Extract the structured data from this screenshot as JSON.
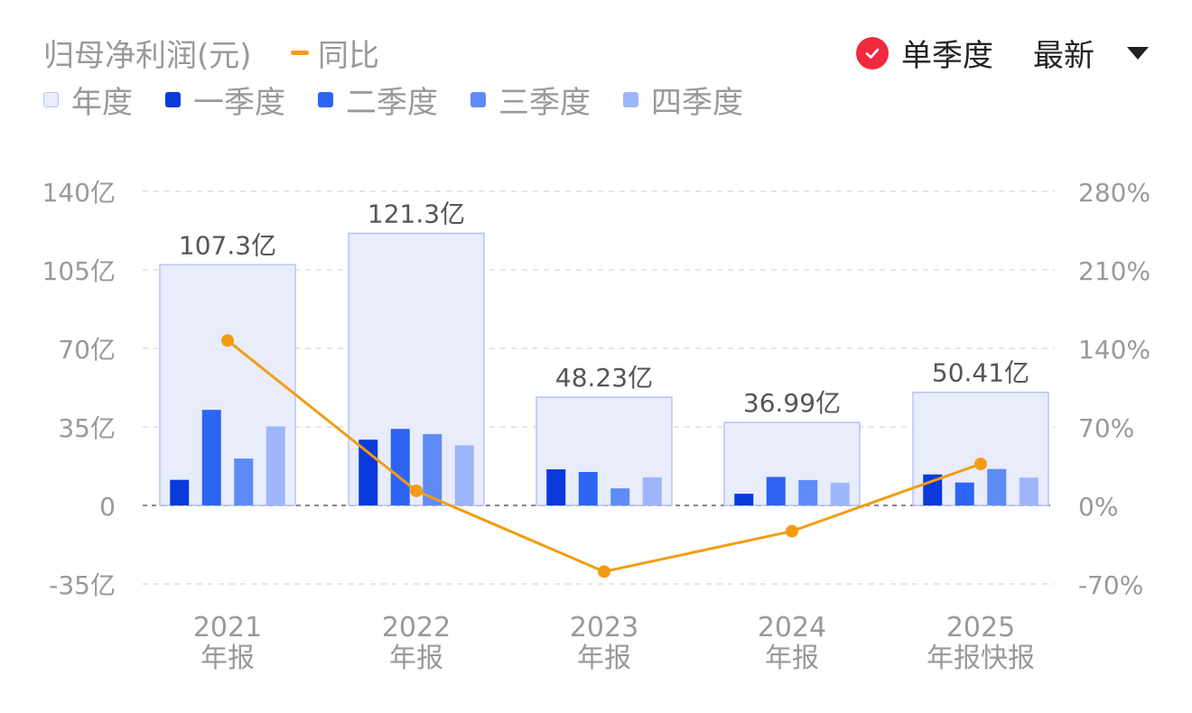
{
  "header": {
    "title": "归母净利润(元)",
    "yoy_label": "同比",
    "single_quarter_label": "单季度",
    "latest_label": "最新"
  },
  "colors": {
    "annual_fill": "#e8ecfb",
    "annual_stroke": "#b8c4f1",
    "q1": "#0a3ad9",
    "q2": "#2e64f3",
    "q3": "#5f8bf6",
    "q4": "#9db6fb",
    "yoy_line": "#f39c12",
    "check": "#f0293d"
  },
  "chart_data": {
    "type": "bar",
    "categories": [
      "2021\n年报",
      "2022\n年报",
      "2023\n年报",
      "2024\n年报",
      "2025\n年报快报"
    ],
    "series": [
      {
        "name": "年度",
        "values": [
          107.3,
          121.3,
          48.23,
          36.99,
          50.41
        ],
        "labels": [
          "107.3亿",
          "121.3亿",
          "48.23亿",
          "36.99亿",
          "50.41亿"
        ]
      },
      {
        "name": "一季度",
        "values": [
          11.4,
          29.3,
          16.1,
          5.2,
          13.8
        ]
      },
      {
        "name": "二季度",
        "values": [
          42.6,
          34.1,
          14.9,
          12.7,
          10.2
        ]
      },
      {
        "name": "三季度",
        "values": [
          20.9,
          31.8,
          7.6,
          11.3,
          16.2
        ]
      },
      {
        "name": "四季度",
        "values": [
          35.2,
          26.8,
          12.5,
          10.1,
          12.4
        ]
      }
    ],
    "line_series": {
      "name": "同比",
      "values": [
        147,
        13,
        -59,
        -23,
        37
      ]
    },
    "y_left": {
      "ticks": [
        140,
        105,
        70,
        35,
        0,
        -35
      ],
      "tick_labels": [
        "140亿",
        "105亿",
        "70亿",
        "35亿",
        "0",
        "-35亿"
      ],
      "ylim": [
        -35,
        140
      ]
    },
    "y_right": {
      "ticks": [
        280,
        210,
        140,
        70,
        0,
        -70
      ],
      "tick_labels": [
        "280%",
        "210%",
        "140%",
        "70%",
        "0%",
        "-70%"
      ],
      "ylim": [
        -70,
        280
      ]
    },
    "grid": true
  }
}
